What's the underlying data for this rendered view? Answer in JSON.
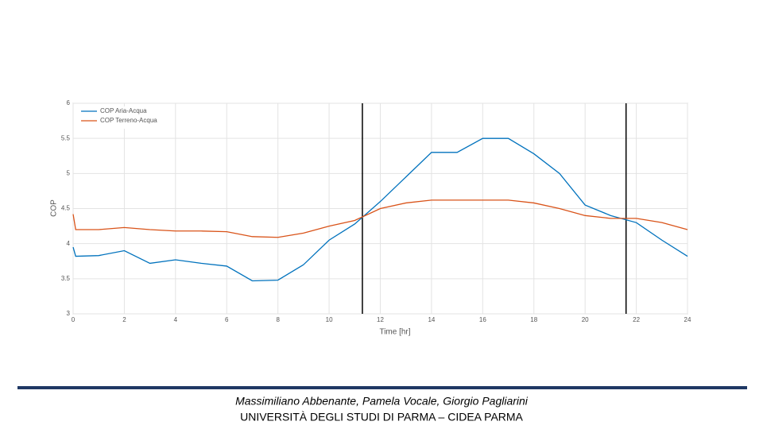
{
  "chart_data": {
    "type": "line",
    "xlabel": "Time [hr]",
    "ylabel": "COP",
    "x": [
      0,
      0.1,
      1,
      2,
      3,
      4,
      5,
      6,
      7,
      8,
      9,
      10,
      11,
      12,
      13,
      14,
      15,
      16,
      17,
      18,
      19,
      20,
      21,
      22,
      23,
      24
    ],
    "series": [
      {
        "name": "COP Aria-Acqua",
        "color": "#0072bd",
        "values": [
          3.95,
          3.82,
          3.83,
          3.9,
          3.72,
          3.77,
          3.72,
          3.68,
          3.47,
          3.48,
          3.7,
          4.05,
          4.28,
          4.6,
          4.95,
          5.3,
          5.3,
          5.5,
          5.5,
          5.28,
          5.0,
          4.55,
          4.4,
          4.3,
          4.05,
          3.82
        ]
      },
      {
        "name": "COP Terreno-Acqua",
        "color": "#d95319",
        "values": [
          4.42,
          4.2,
          4.2,
          4.23,
          4.2,
          4.18,
          4.18,
          4.17,
          4.1,
          4.09,
          4.15,
          4.25,
          4.33,
          4.5,
          4.58,
          4.62,
          4.62,
          4.62,
          4.62,
          4.58,
          4.5,
          4.4,
          4.36,
          4.36,
          4.3,
          4.2
        ]
      }
    ],
    "vlines": [
      11.3,
      21.6
    ],
    "xlim": [
      0,
      24
    ],
    "xticks": [
      0,
      2,
      4,
      6,
      8,
      10,
      12,
      14,
      16,
      18,
      20,
      22,
      24
    ],
    "ylim": [
      3,
      6
    ],
    "yticks": [
      3,
      3.5,
      4,
      4.5,
      5,
      5.5,
      6
    ],
    "grid": true,
    "legend": "northwest"
  },
  "footer": {
    "authors": "Massimiliano Abbenante, Pamela Vocale, Giorgio Pagliarini",
    "affiliation": "UNIVERSITÀ DEGLI STUDI DI PARMA – CIDEA PARMA"
  }
}
